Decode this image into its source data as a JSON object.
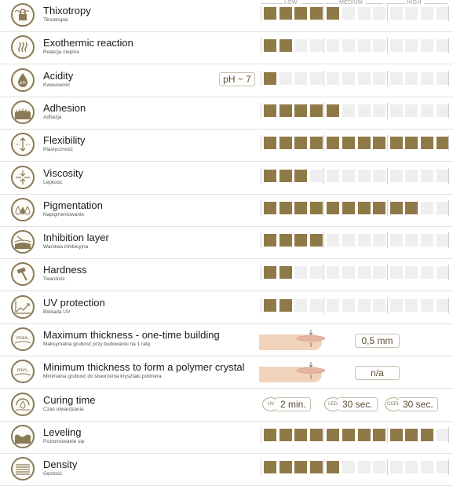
{
  "scale": {
    "low": "LOW",
    "medium": "MEDIUM",
    "high": "HIGH",
    "total_cells": 12
  },
  "colors": {
    "filled": "#8f7a47",
    "empty": "#efefef",
    "icon_border": "#8a7a56"
  },
  "rows": [
    {
      "id": "thixotropy",
      "icon": "lock-icon",
      "title": "Thixotropy",
      "subtitle": "Tiksotropia",
      "level": 5,
      "type": "bar"
    },
    {
      "id": "exothermic",
      "icon": "heat-waves-icon",
      "title": "Exothermic reaction",
      "subtitle": "Reakcja cieplna",
      "level": 2,
      "type": "bar"
    },
    {
      "id": "acidity",
      "icon": "ph-drop-icon",
      "title": "Acidity",
      "subtitle": "Kwasowość",
      "level": 1,
      "type": "bar",
      "badge": "pH ~ 7"
    },
    {
      "id": "adhesion",
      "icon": "adhesion-icon",
      "title": "Adhesion",
      "subtitle": "Adhezja",
      "level": 5,
      "type": "bar"
    },
    {
      "id": "flexibility",
      "icon": "flex-arrows-icon",
      "title": "Flexibility",
      "subtitle": "Plastyczność",
      "level": 12,
      "type": "bar"
    },
    {
      "id": "viscosity",
      "icon": "viscosity-icon",
      "title": "Viscosity",
      "subtitle": "Lepkość",
      "level": 3,
      "type": "bar"
    },
    {
      "id": "pigmentation",
      "icon": "drops-icon",
      "title": "Pigmentation",
      "subtitle": "Napigmentowanie",
      "level": 10,
      "type": "bar"
    },
    {
      "id": "inhibition",
      "icon": "layer-icon",
      "title": "Inhibition layer",
      "subtitle": "Warstwa inhibicyjna",
      "level": 4,
      "type": "bar"
    },
    {
      "id": "hardness",
      "icon": "hammer-icon",
      "title": "Hardness",
      "subtitle": "Twardość",
      "level": 2,
      "type": "bar"
    },
    {
      "id": "uv",
      "icon": "uv-chart-icon",
      "title": "UV protection",
      "subtitle": "Blokada UV",
      "level": 2,
      "type": "bar"
    },
    {
      "id": "maxthick",
      "icon": "max-thickness-icon",
      "icon_text": "max.",
      "title": "Maximum thickness - one-time building",
      "subtitle": "Maksymalna grubość przy budowaniu na 1 ratę",
      "type": "finger",
      "value": "0,5 mm"
    },
    {
      "id": "minthick",
      "icon": "min-thickness-icon",
      "icon_text": "min.",
      "title": "Minimum thickness to form a polymer crystal",
      "subtitle": "Minimalna grubość do stworzenia kryształu polimera",
      "type": "finger",
      "value": "n/a"
    },
    {
      "id": "curing",
      "icon": "lamp-icon",
      "title": "Curing time",
      "subtitle": "Czas utwardzania",
      "type": "curing",
      "curing": [
        {
          "tag": "UV",
          "value": "2 min."
        },
        {
          "tag": "LED",
          "value": "30 sec."
        },
        {
          "tag": "CCFL",
          "value": "30 sec."
        }
      ]
    },
    {
      "id": "leveling",
      "icon": "leveling-icon",
      "title": "Leveling",
      "subtitle": "Poziomowanie się",
      "level": 11,
      "type": "bar"
    },
    {
      "id": "density",
      "icon": "density-icon",
      "title": "Density",
      "subtitle": "Gęstość",
      "level": 5,
      "type": "bar"
    }
  ]
}
